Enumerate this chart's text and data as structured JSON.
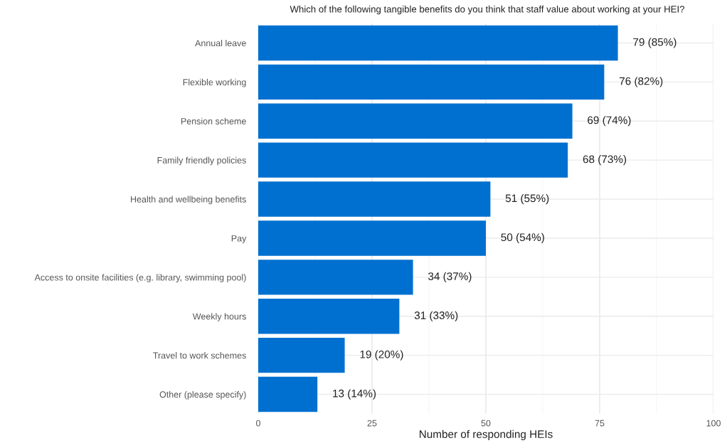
{
  "chart_data": {
    "type": "bar",
    "orientation": "horizontal",
    "title": "Which of the following tangible benefits do you think that staff value about working at your HEI?",
    "xlabel": "Number of responding HEIs",
    "categories": [
      "Annual leave",
      "Flexible working",
      "Pension scheme",
      "Family friendly policies",
      "Health and wellbeing benefits",
      "Pay",
      "Access to onsite facilities (e.g. library, swimming pool)",
      "Weekly hours",
      "Travel to work schemes",
      "Other (please specify)"
    ],
    "values": [
      79,
      76,
      69,
      68,
      51,
      50,
      34,
      31,
      19,
      13
    ],
    "value_labels": [
      "79 (85%)",
      "76 (82%)",
      "69 (74%)",
      "68 (73%)",
      "51 (55%)",
      "50 (54%)",
      "34 (37%)",
      "31 (33%)",
      "19 (20%)",
      "13 (14%)"
    ],
    "color": "#0070d0",
    "xlim": [
      0,
      100
    ],
    "xticks": [
      0,
      25,
      50,
      75,
      100
    ],
    "grid": true
  }
}
